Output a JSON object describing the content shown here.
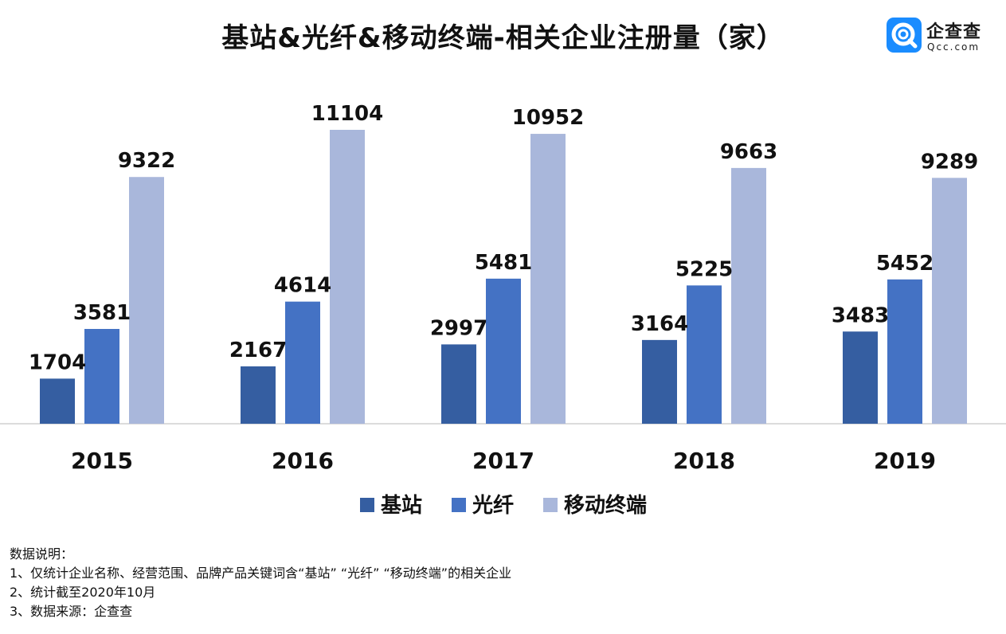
{
  "header": {
    "title": "基站&光纤&移动终端-相关企业注册量（家）"
  },
  "logo": {
    "name": "企查查",
    "domain": "Qcc.com",
    "icon": "qcc-logo-icon",
    "color": "#1a8cff"
  },
  "chart_data": {
    "type": "bar",
    "title": "基站&光纤&移动终端-相关企业注册量（家）",
    "xlabel": "",
    "ylabel": "",
    "categories": [
      "2015",
      "2016",
      "2017",
      "2018",
      "2019"
    ],
    "series": [
      {
        "name": "基站",
        "color": "#355ea1",
        "values": [
          1704,
          2167,
          2997,
          3164,
          3483
        ]
      },
      {
        "name": "光纤",
        "color": "#4472c4",
        "values": [
          3581,
          4614,
          5481,
          5225,
          5452
        ]
      },
      {
        "name": "移动终端",
        "color": "#a9b7db",
        "values": [
          9322,
          11104,
          10952,
          9663,
          9289
        ]
      }
    ],
    "ylim": [
      0,
      11104
    ],
    "grid": false,
    "legend": "bottom",
    "data_labels": true
  },
  "notes": {
    "heading": "数据说明：",
    "lines": [
      "1、仅统计企业名称、经营范围、品牌产品关键词含“基站” “光纤” “移动终端”的相关企业",
      "2、统计截至2020年10月",
      "3、数据来源：企查查"
    ]
  }
}
